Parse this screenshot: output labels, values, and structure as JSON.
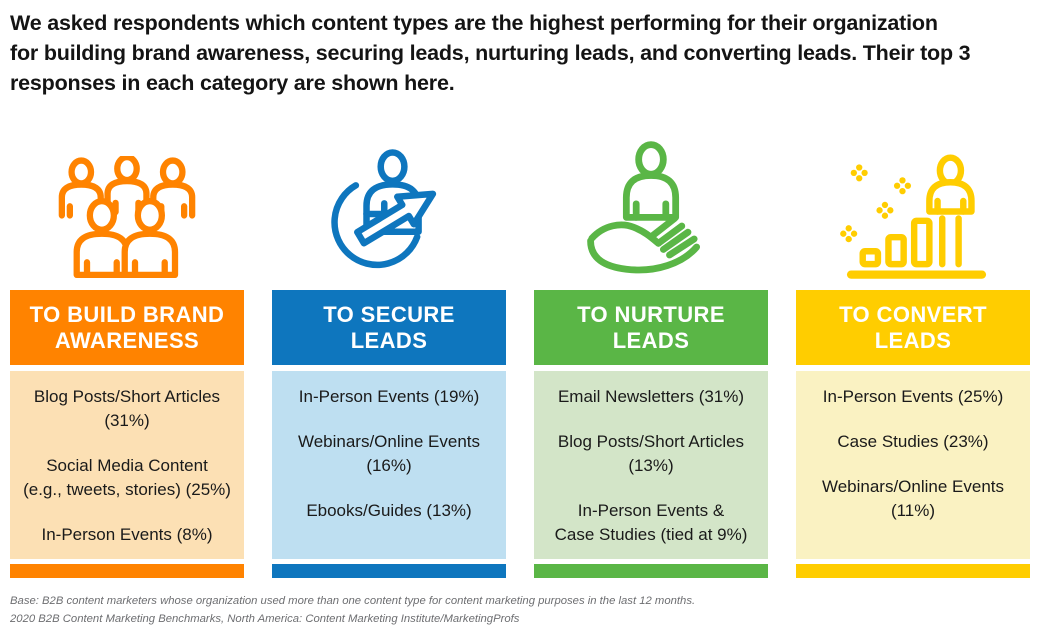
{
  "title_lines": [
    "We asked respondents which content types are the highest performing for their organization",
    "for building brand awareness, securing leads, nurturing leads, and converting leads. Their top 3",
    "responses in each category are shown here."
  ],
  "columns": [
    {
      "id": "build-brand-awareness",
      "icon": "audience-group-icon",
      "header_lines": [
        "TO BUILD BRAND",
        "AWARENESS"
      ],
      "items": [
        [
          "Blog Posts/Short Articles",
          "(31%)"
        ],
        [
          "Social Media Content",
          "(e.g., tweets, stories) (25%)"
        ],
        [
          "In-Person Events (8%)"
        ]
      ],
      "accent_color": "#FF8300",
      "tint_color": "#FCE0B4"
    },
    {
      "id": "secure-leads",
      "icon": "lead-capture-icon",
      "header_lines": [
        "TO SECURE",
        "LEADS"
      ],
      "items": [
        [
          "In-Person Events (19%)"
        ],
        [
          "Webinars/Online Events",
          "(16%)"
        ],
        [
          "Ebooks/Guides (13%)"
        ]
      ],
      "accent_color": "#0E76BE",
      "tint_color": "#BEDFF1"
    },
    {
      "id": "nurture-leads",
      "icon": "nurture-hand-icon",
      "header_lines": [
        "TO NURTURE",
        "LEADS"
      ],
      "items": [
        [
          "Email Newsletters (31%)"
        ],
        [
          "Blog Posts/Short Articles",
          "(13%)"
        ],
        [
          "In-Person Events &",
          "Case Studies (tied at 9%)"
        ]
      ],
      "accent_color": "#5AB646",
      "tint_color": "#D3E5C8"
    },
    {
      "id": "convert-leads",
      "icon": "conversion-growth-icon",
      "header_lines": [
        "TO CONVERT",
        "LEADS"
      ],
      "items": [
        [
          "In-Person Events (25%)"
        ],
        [
          "Case Studies (23%)"
        ],
        [
          "Webinars/Online Events",
          "(11%)"
        ]
      ],
      "accent_color": "#FFCD00",
      "tint_color": "#FAF2C2"
    }
  ],
  "footer": {
    "base_note": "Base: B2B content marketers whose organization used more than one content type for content marketing purposes in the last 12 months.",
    "source_note": "2020 B2B Content Marketing Benchmarks, North America: Content Marketing Institute/MarketingProfs"
  },
  "chart_data": {
    "type": "table",
    "title": "We asked respondents which content types are the highest performing for their organization for building brand awareness, securing leads, nurturing leads, and converting leads. Their top 3 responses in each category are shown here.",
    "groups": [
      {
        "goal": "To Build Brand Awareness",
        "top_responses": [
          {
            "content_type": "Blog Posts/Short Articles",
            "percent": 31
          },
          {
            "content_type": "Social Media Content (e.g., tweets, stories)",
            "percent": 25
          },
          {
            "content_type": "In-Person Events",
            "percent": 8
          }
        ]
      },
      {
        "goal": "To Secure Leads",
        "top_responses": [
          {
            "content_type": "In-Person Events",
            "percent": 19
          },
          {
            "content_type": "Webinars/Online Events",
            "percent": 16
          },
          {
            "content_type": "Ebooks/Guides",
            "percent": 13
          }
        ]
      },
      {
        "goal": "To Nurture Leads",
        "top_responses": [
          {
            "content_type": "Email Newsletters",
            "percent": 31
          },
          {
            "content_type": "Blog Posts/Short Articles",
            "percent": 13
          },
          {
            "content_type": "In-Person Events & Case Studies",
            "percent": 9,
            "note": "tied at 9%"
          }
        ]
      },
      {
        "goal": "To Convert Leads",
        "top_responses": [
          {
            "content_type": "In-Person Events",
            "percent": 25
          },
          {
            "content_type": "Case Studies",
            "percent": 23
          },
          {
            "content_type": "Webinars/Online Events",
            "percent": 11
          }
        ]
      }
    ]
  }
}
